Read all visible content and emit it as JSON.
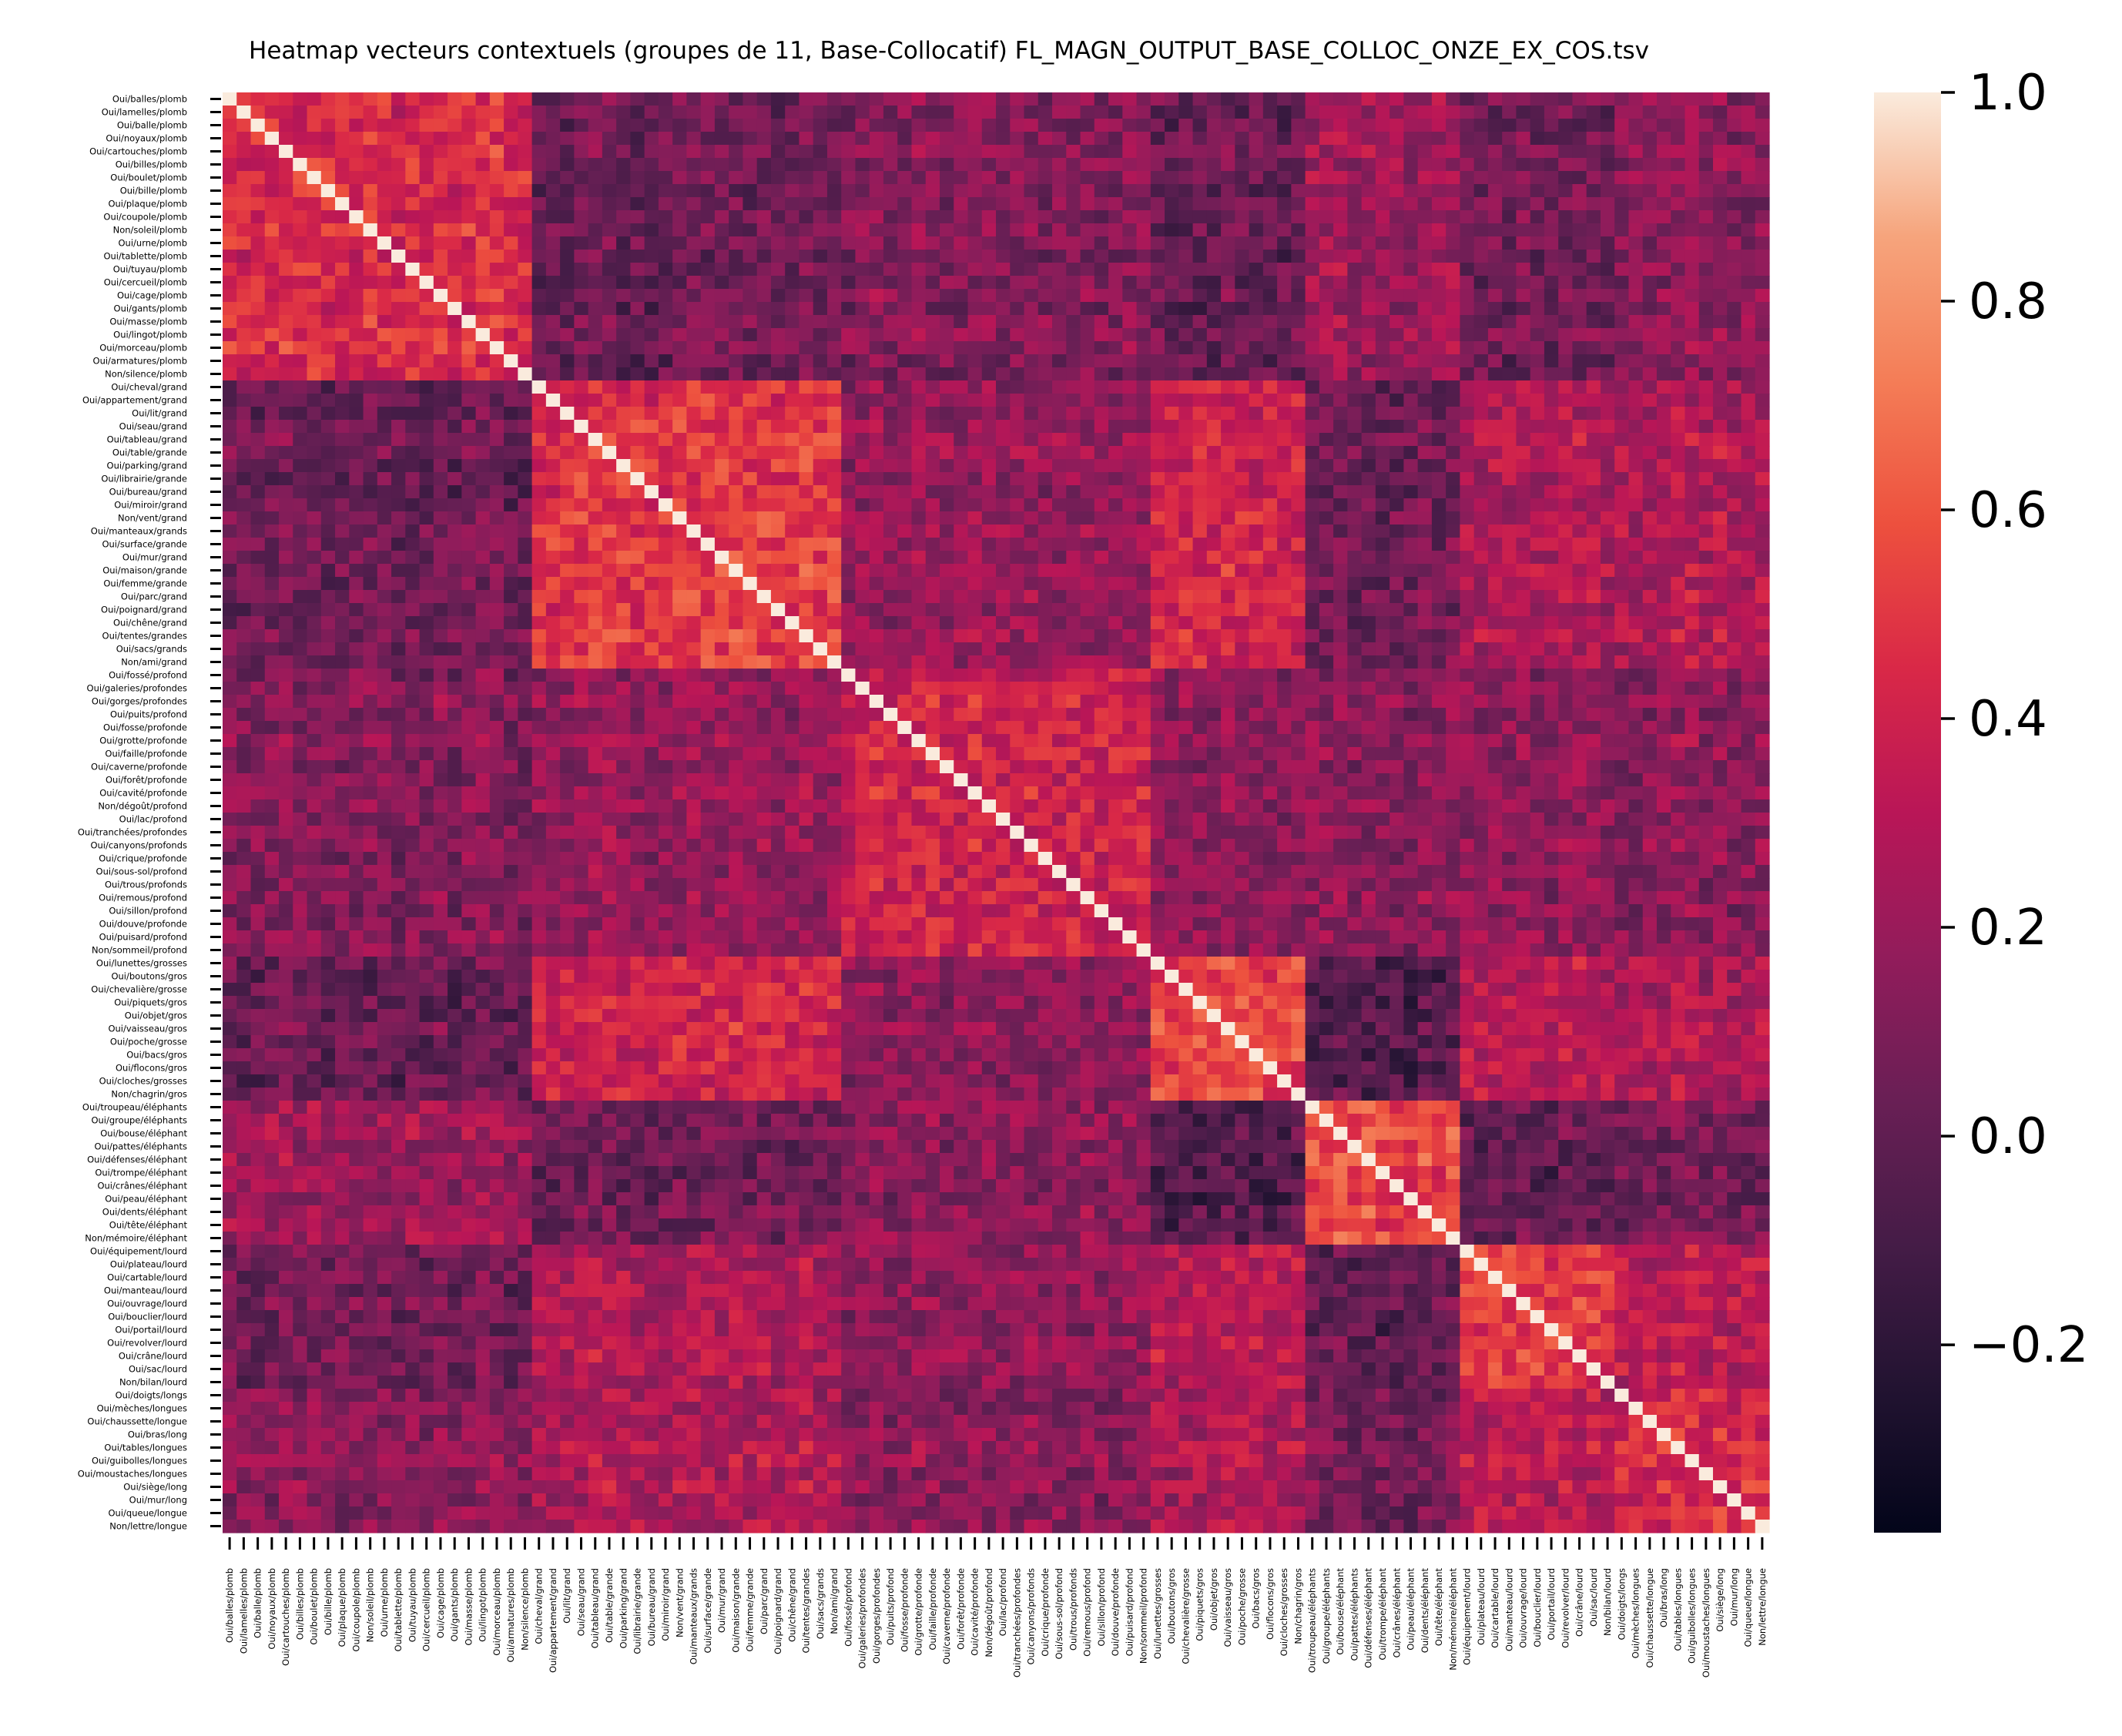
{
  "chart_data": {
    "type": "heatmap",
    "title": "Heatmap vecteurs contextuels (groupes de 11, Base-Collocatif) FL_MAGN_OUTPUT_BASE_COLLOC_ONZE_EX_COS.tsv",
    "xlabel": "",
    "ylabel": "",
    "grid": false,
    "colorbar": {
      "colormap": "rocket",
      "vmin": -0.38,
      "vmax": 1.0,
      "ticks": [
        1.0,
        0.8,
        0.6,
        0.4,
        0.2,
        0.0,
        -0.2
      ],
      "tick_labels": [
        "1.0",
        "0.8",
        "0.6",
        "0.4",
        "0.2",
        "0.0",
        "−0.2"
      ]
    },
    "groups": [
      {
        "name": "plomb",
        "start": 0,
        "end": 21,
        "within": 0.45
      },
      {
        "name": "grand",
        "start": 22,
        "end": 43,
        "within": 0.5
      },
      {
        "name": "profond",
        "start": 44,
        "end": 65,
        "within": 0.38
      },
      {
        "name": "gros",
        "start": 66,
        "end": 76,
        "within": 0.55
      },
      {
        "name": "éléphant",
        "start": 77,
        "end": 87,
        "within": 0.55
      },
      {
        "name": "lourd",
        "start": 88,
        "end": 98,
        "within": 0.5
      },
      {
        "name": "long",
        "start": 99,
        "end": 109,
        "within": 0.45
      }
    ],
    "between_mean": [
      [
        0.45,
        0.05,
        0.12,
        0.02,
        0.22,
        0.05,
        0.15
      ],
      [
        0.05,
        0.5,
        0.18,
        0.4,
        0.05,
        0.28,
        0.28
      ],
      [
        0.12,
        0.18,
        0.38,
        0.15,
        0.15,
        0.15,
        0.15
      ],
      [
        0.02,
        0.4,
        0.15,
        0.55,
        -0.05,
        0.32,
        0.28
      ],
      [
        0.22,
        0.05,
        0.15,
        -0.05,
        0.55,
        0.0,
        0.08
      ],
      [
        0.05,
        0.28,
        0.15,
        0.32,
        0.0,
        0.5,
        0.32
      ],
      [
        0.15,
        0.28,
        0.15,
        0.28,
        0.08,
        0.32,
        0.45
      ]
    ],
    "labels": [
      "Oui/balles/plomb",
      "Oui/lamelles/plomb",
      "Oui/balle/plomb",
      "Oui/noyaux/plomb",
      "Oui/cartouches/plomb",
      "Oui/billes/plomb",
      "Oui/boulet/plomb",
      "Oui/bille/plomb",
      "Oui/plaque/plomb",
      "Oui/coupole/plomb",
      "Non/soleil/plomb",
      "Oui/urne/plomb",
      "Oui/tablette/plomb",
      "Oui/tuyau/plomb",
      "Oui/cercueil/plomb",
      "Oui/cage/plomb",
      "Oui/gants/plomb",
      "Oui/masse/plomb",
      "Oui/lingot/plomb",
      "Oui/morceau/plomb",
      "Oui/armatures/plomb",
      "Non/silence/plomb",
      "Oui/cheval/grand",
      "Oui/appartement/grand",
      "Oui/lit/grand",
      "Oui/seau/grand",
      "Oui/tableau/grand",
      "Oui/table/grande",
      "Oui/parking/grand",
      "Oui/librairie/grande",
      "Oui/bureau/grand",
      "Oui/miroir/grand",
      "Non/vent/grand",
      "Oui/manteaux/grands",
      "Oui/surface/grande",
      "Oui/mur/grand",
      "Oui/maison/grande",
      "Oui/femme/grande",
      "Oui/parc/grand",
      "Oui/poignard/grand",
      "Oui/chêne/grand",
      "Oui/tentes/grandes",
      "Oui/sacs/grands",
      "Non/ami/grand",
      "Oui/fossé/profond",
      "Oui/galeries/profondes",
      "Oui/gorges/profondes",
      "Oui/puits/profond",
      "Oui/fosse/profonde",
      "Oui/grotte/profonde",
      "Oui/faille/profonde",
      "Oui/caverne/profonde",
      "Oui/forêt/profonde",
      "Oui/cavité/profonde",
      "Non/dégoût/profond",
      "Oui/lac/profond",
      "Oui/tranchées/profondes",
      "Oui/canyons/profonds",
      "Oui/crique/profonde",
      "Oui/sous-sol/profond",
      "Oui/trous/profonds",
      "Oui/remous/profond",
      "Oui/sillon/profond",
      "Oui/douve/profonde",
      "Oui/puisard/profond",
      "Non/sommeil/profond",
      "Oui/lunettes/grosses",
      "Oui/boutons/gros",
      "Oui/chevalière/grosse",
      "Oui/piquets/gros",
      "Oui/objet/gros",
      "Oui/vaisseau/gros",
      "Oui/poche/grosse",
      "Oui/bacs/gros",
      "Oui/flocons/gros",
      "Oui/cloches/grosses",
      "Non/chagrin/gros",
      "Oui/troupeau/éléphants",
      "Oui/groupe/éléphants",
      "Oui/bouse/éléphant",
      "Oui/pattes/éléphants",
      "Oui/défenses/éléphant",
      "Oui/trompe/éléphant",
      "Oui/crânes/éléphant",
      "Oui/peau/éléphant",
      "Oui/dents/éléphant",
      "Oui/tête/éléphant",
      "Non/mémoire/éléphant",
      "Oui/équipement/lourd",
      "Oui/plateau/lourd",
      "Oui/cartable/lourd",
      "Oui/manteau/lourd",
      "Oui/ouvrage/lourd",
      "Oui/bouclier/lourd",
      "Oui/portail/lourd",
      "Oui/revolver/lourd",
      "Oui/crâne/lourd",
      "Oui/sac/lourd",
      "Non/bilan/lourd",
      "Oui/doigts/longs",
      "Oui/mèches/longues",
      "Oui/chaussette/longue",
      "Oui/bras/long",
      "Oui/tables/longues",
      "Oui/guibolles/longues",
      "Oui/moustaches/longues",
      "Oui/siège/long",
      "Oui/mur/long",
      "Oui/queue/longue",
      "Non/lettre/longue"
    ],
    "y_tick_labels": [
      "Oui/balles/plomb",
      "Oui/lamelles/plomb",
      "Oui/balle/plomb",
      "Oui/noyaux/plomb",
      "Oui/cartouches/plomb",
      "Oui/billes/plomb",
      "Oui/boulet/plomb",
      "Oui/bille/plomb",
      "Oui/plaque/plomb",
      "Oui/coupole/plomb",
      "Non/soleil/plomb",
      "Oui/urne/plomb",
      "Oui/tablette/plomb",
      "Oui/tuyau/plomb",
      "Oui/cercueil/plomb",
      "Oui/cage/plomb",
      "Oui/gants/plomb",
      "Oui/masse/plomb",
      "Oui/lingot/plomb",
      "Oui/morceau/plomb",
      "Oui/armatures/plomb",
      "Non/silence/plomb",
      "Oui/cheval/grand",
      "Oui/appartement/grand",
      "Oui/lit/grand",
      "Oui/seau/grand",
      "Oui/tableau/grand",
      "Oui/table/grande",
      "Oui/parking/grand",
      "Oui/librairie/grande",
      "Oui/bureau/grand",
      "Oui/miroir/grand",
      "Non/vent/grand",
      "Oui/manteaux/grands",
      "Oui/surface/grande",
      "Oui/mur/grand",
      "Oui/maison/grande",
      "Oui/femme/grande",
      "Oui/parc/grand",
      "Oui/poignard/grand",
      "Oui/chêne/grand",
      "Oui/tentes/grandes",
      "Oui/sacs/grands",
      "Non/ami/grand",
      "Oui/fossé/profond",
      "Oui/galeries/profondes",
      "Oui/gorges/profondes",
      "Oui/puits/profond",
      "Oui/fosse/profonde",
      "Oui/grotte/profonde",
      "Oui/faille/profonde",
      "Oui/caverne/profonde",
      "Oui/forêt/profonde",
      "Oui/cavité/profonde",
      "Non/dégoût/profond",
      "Oui/lac/profond",
      "Oui/tranchées/profondes",
      "Oui/canyons/profonds",
      "Oui/crique/profonde",
      "Oui/sous-sol/profond",
      "Oui/trous/profonds",
      "Oui/remous/profond",
      "Oui/sillon/profond",
      "Oui/douve/profonde",
      "Oui/puisard/profond",
      "Non/sommeil/profond",
      "Oui/lunettes/grosses",
      "Oui/boutons/gros",
      "Oui/chevalière/grosse",
      "Oui/piquets/gros",
      "Oui/objet/gros",
      "Oui/vaisseau/gros",
      "Oui/poche/grosse",
      "Oui/bacs/gros",
      "Oui/flocons/gros",
      "Oui/cloches/grosses",
      "Non/chagrin/gros",
      "Oui/troupeau/éléphants",
      "Oui/groupe/éléphants",
      "Oui/bouse/éléphant",
      "Oui/pattes/éléphants",
      "Oui/défenses/éléphant",
      "Oui/trompe/éléphant",
      "Oui/crânes/éléphant",
      "Oui/peau/éléphant",
      "Oui/dents/éléphant",
      "Oui/tête/éléphant",
      "Non/mémoire/éléphant",
      "Oui/équipement/lourd",
      "Oui/plateau/lourd",
      "Oui/cartable/lourd",
      "Oui/manteau/lourd",
      "Oui/ouvrage/lourd",
      "Oui/bouclier/lourd",
      "Oui/portail/lourd",
      "Oui/revolver/lourd",
      "Oui/crâne/lourd",
      "Oui/sac/lourd",
      "Non/bilan/lourd",
      "Oui/doigts/longs",
      "Oui/mèches/longues",
      "Oui/chaussette/longue",
      "Oui/bras/long",
      "Oui/tables/longues",
      "Oui/guibolles/longues",
      "Oui/moustaches/longues",
      "Oui/siège/long",
      "Oui/mur/long",
      "Oui/queue/longue",
      "Non/lettre/longue"
    ]
  }
}
